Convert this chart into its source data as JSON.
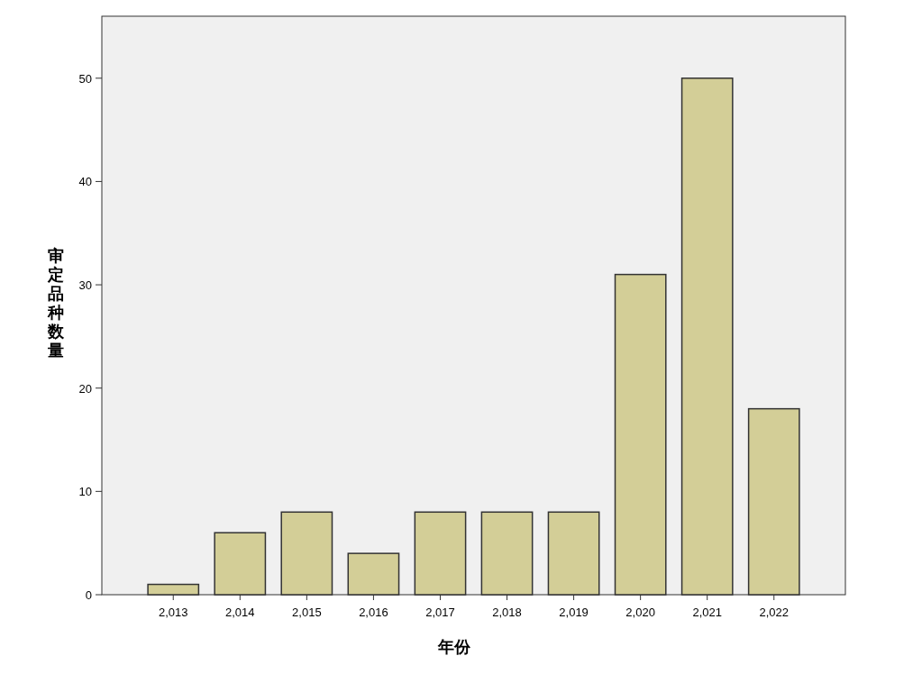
{
  "chart_data": {
    "type": "bar",
    "xlabel": "年份",
    "ylabel": "审定品种数量",
    "categories": [
      "2,013",
      "2,014",
      "2,015",
      "2,016",
      "2,017",
      "2,018",
      "2,019",
      "2,020",
      "2,021",
      "2,022"
    ],
    "values": [
      1,
      6,
      8,
      4,
      8,
      8,
      8,
      31,
      50,
      18
    ],
    "color": "#d3ce97",
    "ylim": [
      0,
      56
    ],
    "yticks": [
      0,
      10,
      20,
      30,
      40,
      50
    ],
    "grid": false
  }
}
